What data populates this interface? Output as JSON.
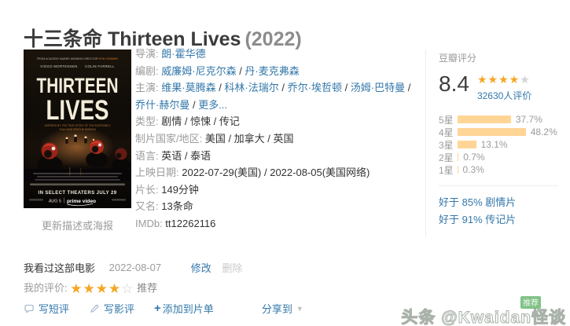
{
  "title": {
    "main": "十三条命 Thirteen Lives",
    "year": "(2022)"
  },
  "poster": {
    "caption": "更新描述或海报",
    "top_credit": "FROM ACADEMY AWARD WINNING DIRECTOR ",
    "top_credit_name": "RON HOWARD",
    "actors_line": "VIGGO MORTENSEN      COLIN FARRELL",
    "title_line1": "THIRTEEN",
    "title_line2": "LIVES",
    "tagline1": "INSPIRED BY THE TRUE STORY OF THE INCREDIBLE",
    "tagline2": "THAI CAVE RESCUE MISSION",
    "theaters_line": "IN SELECT THEATERS JULY 29",
    "date_line": "AUG 5",
    "prime_line": "prime video"
  },
  "info": {
    "rows": [
      {
        "label": "导演:",
        "parts": [
          {
            "t": "朗·霍华德",
            "link": true
          }
        ]
      },
      {
        "label": "编剧:",
        "parts": [
          {
            "t": "威廉姆·尼克尔森",
            "link": true
          },
          {
            "t": " / ",
            "link": false
          },
          {
            "t": "丹·麦克弗森",
            "link": true
          }
        ]
      },
      {
        "label": "主演:",
        "parts": [
          {
            "t": "维果·莫腾森",
            "link": true
          },
          {
            "t": " / ",
            "link": false
          },
          {
            "t": "科林·法瑞尔",
            "link": true
          },
          {
            "t": " / ",
            "link": false
          },
          {
            "t": "乔尔·埃哲顿",
            "link": true
          },
          {
            "t": " / ",
            "link": false
          },
          {
            "t": "汤姆·巴特曼",
            "link": true
          },
          {
            "t": " / ",
            "link": false
          },
          {
            "t": "乔什·赫尔曼",
            "link": true
          },
          {
            "t": " / ",
            "link": false
          },
          {
            "t": "更多...",
            "link": true,
            "muted": true
          }
        ]
      },
      {
        "label": "类型:",
        "parts": [
          {
            "t": "剧情 / 惊悚 / 传记",
            "link": false
          }
        ]
      },
      {
        "label": "制片国家/地区:",
        "parts": [
          {
            "t": "美国 / 加拿大 / 英国",
            "link": false
          }
        ]
      },
      {
        "label": "语言:",
        "parts": [
          {
            "t": "英语 / 泰语",
            "link": false
          }
        ]
      },
      {
        "label": "上映日期:",
        "parts": [
          {
            "t": "2022-07-29(美国) / 2022-08-05(美国网络)",
            "link": false
          }
        ]
      },
      {
        "label": "片长:",
        "parts": [
          {
            "t": "149分钟",
            "link": false
          }
        ]
      },
      {
        "label": "又名:",
        "parts": [
          {
            "t": "13条命",
            "link": false
          }
        ]
      },
      {
        "label": "IMDb:",
        "parts": [
          {
            "t": "tt12262116",
            "link": false
          }
        ]
      }
    ]
  },
  "rating": {
    "header": "豆瓣评分",
    "score": "8.4",
    "stars_full": 4,
    "stars_grey": 1,
    "votes": "32630人评价",
    "histogram": [
      {
        "label": "5星",
        "pct_text": "37.7%",
        "pct": 37.7
      },
      {
        "label": "4星",
        "pct_text": "48.2%",
        "pct": 48.2
      },
      {
        "label": "3星",
        "pct_text": "13.1%",
        "pct": 13.1
      },
      {
        "label": "2星",
        "pct_text": "0.7%",
        "pct": 0.7
      },
      {
        "label": "1星",
        "pct_text": "0.3%",
        "pct": 0.3
      }
    ],
    "better_than": [
      "好于 85% 剧情片",
      "好于 91% 传记片"
    ]
  },
  "my_status": {
    "collect_text": "我看过这部电影",
    "date": "2022-08-07",
    "edit_label": "修改",
    "delete_label": "删除",
    "rating_label": "我的评价:",
    "my_stars_full": 4,
    "my_stars_empty": 1,
    "verdict": "推荐"
  },
  "actions": {
    "short_review": "写短评",
    "review": "写影评",
    "plus": "+",
    "add_to_list": "添加到片单",
    "share": "分享到"
  },
  "watermark": {
    "text": "头条 @Kwaidan怪谈",
    "badge": "推荐"
  },
  "colors": {
    "link_blue": "#3377aa",
    "star_orange": "#f5a623",
    "hist_bar": "#ffd596",
    "label_grey": "#9b9b9b",
    "badge_green": "#60b468"
  }
}
